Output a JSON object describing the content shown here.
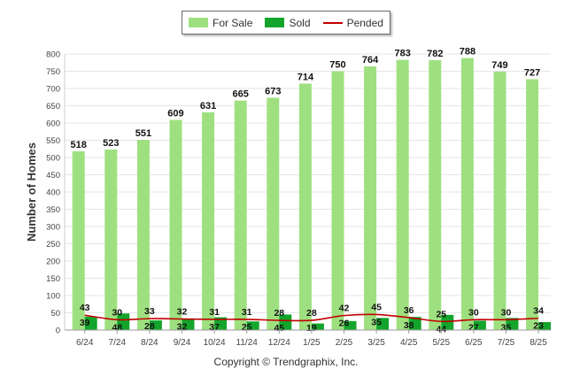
{
  "chart_data": {
    "type": "bar",
    "categories": [
      "6/24",
      "7/24",
      "8/24",
      "9/24",
      "10/24",
      "11/24",
      "12/24",
      "1/25",
      "2/25",
      "3/25",
      "4/25",
      "5/25",
      "6/25",
      "7/25",
      "8/25"
    ],
    "series": [
      {
        "name": "For Sale",
        "type": "bar",
        "color": "#9ee07f",
        "values": [
          518,
          523,
          551,
          609,
          631,
          665,
          673,
          714,
          750,
          764,
          783,
          782,
          788,
          749,
          727
        ]
      },
      {
        "name": "Sold",
        "type": "bar",
        "color": "#13a52b",
        "values": [
          39,
          48,
          28,
          32,
          37,
          25,
          45,
          19,
          26,
          35,
          38,
          44,
          27,
          35,
          23
        ]
      },
      {
        "name": "Pended",
        "type": "line",
        "color": "#c00000",
        "values": [
          43,
          30,
          33,
          32,
          31,
          31,
          28,
          28,
          42,
          45,
          36,
          25,
          30,
          30,
          34
        ]
      }
    ],
    "xlabel": "",
    "ylabel": "Number of Homes",
    "ylim": [
      0,
      800
    ],
    "yticks": [
      0,
      50,
      100,
      150,
      200,
      250,
      300,
      350,
      400,
      450,
      500,
      550,
      600,
      650,
      700,
      750,
      800
    ],
    "grid": true,
    "legend": "top-center",
    "footer": "Copyright © Trendgraphix, Inc."
  }
}
